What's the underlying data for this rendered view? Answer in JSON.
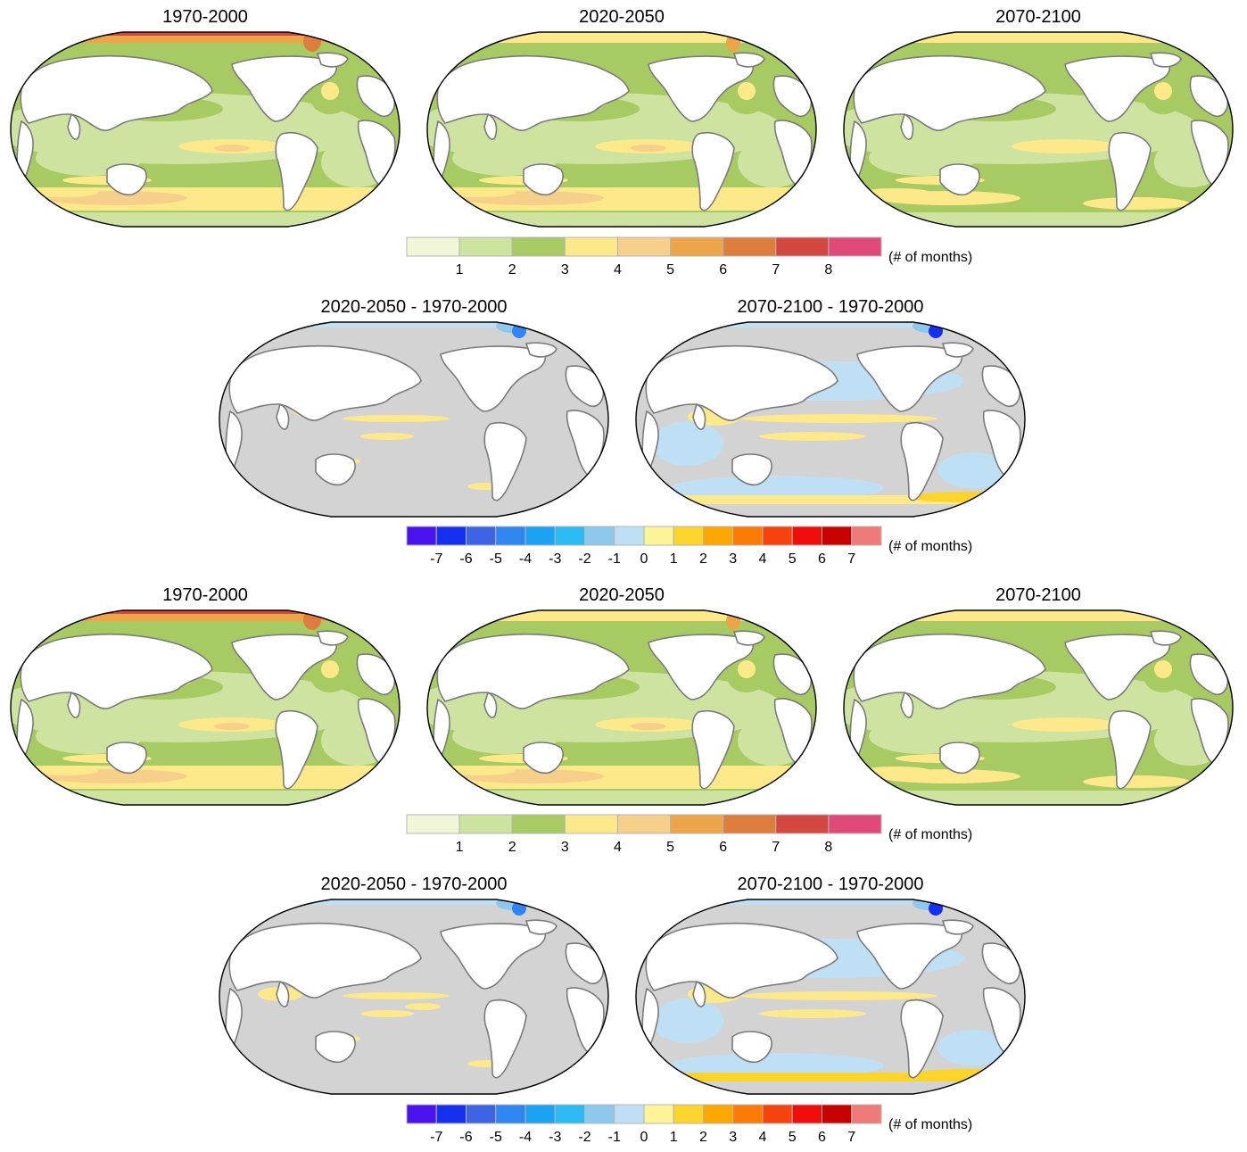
{
  "rows": [
    {
      "kind": "absolute",
      "panels": [
        {
          "title": "1970-2000",
          "variant": "abs-hist"
        },
        {
          "title": "2020-2050",
          "variant": "abs-mid"
        },
        {
          "title": "2070-2100",
          "variant": "abs-end"
        }
      ]
    },
    {
      "kind": "difference",
      "panels": [
        {
          "title": "2020-2050 - 1970-2000",
          "variant": "diff-mid"
        },
        {
          "title": "2070-2100 - 1970-2000",
          "variant": "diff-end"
        }
      ]
    },
    {
      "kind": "absolute",
      "panels": [
        {
          "title": "1970-2000",
          "variant": "abs-hist"
        },
        {
          "title": "2020-2050",
          "variant": "abs-mid"
        },
        {
          "title": "2070-2100",
          "variant": "abs-end"
        }
      ]
    },
    {
      "kind": "difference",
      "panels": [
        {
          "title": "2020-2050 - 1970-2000",
          "variant": "diff-mid2"
        },
        {
          "title": "2070-2100 - 1970-2000",
          "variant": "diff-end2"
        }
      ]
    }
  ],
  "colorbars": {
    "absolute": {
      "unit": "(# of months)",
      "colors": [
        "#f2f6d8",
        "#cfe3a1",
        "#a7cb62",
        "#fde98a",
        "#f6d08a",
        "#eda54a",
        "#de7d3e",
        "#d2473f",
        "#e04a78"
      ],
      "ticks": [
        "1",
        "2",
        "3",
        "4",
        "5",
        "6",
        "7",
        "8"
      ]
    },
    "difference": {
      "unit": "(# of months)",
      "colors": [
        "#4a13ee",
        "#1630f0",
        "#3e64e3",
        "#2f86f0",
        "#1ca2f2",
        "#2cbaf2",
        "#8ec8ec",
        "#bfe0f4",
        "#fdf497",
        "#fdd42b",
        "#fca800",
        "#fa7b05",
        "#f6420c",
        "#f20d0d",
        "#c70000",
        "#ee7b79"
      ],
      "ticks": [
        "-7",
        "-6",
        "-5",
        "-4",
        "-3",
        "-2",
        "-1",
        "0",
        "1",
        "2",
        "3",
        "4",
        "5",
        "6",
        "7"
      ]
    }
  },
  "map_colors": {
    "land": "#ffffff",
    "coastline": "#7a7a7a",
    "border": "#000000",
    "ocean_neutral": "#d3d3d3"
  }
}
